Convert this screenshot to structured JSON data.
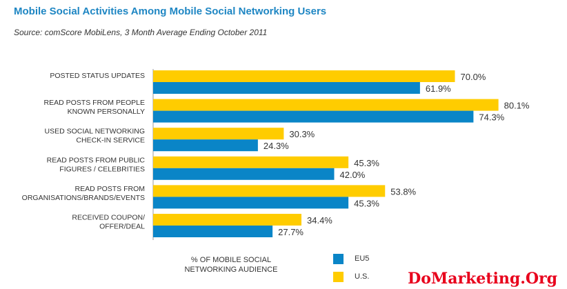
{
  "title": "Mobile Social Activities Among Mobile Social Networking Users",
  "subtitle": "Source: comScore MobiLens, 3 Month Average Ending October 2011",
  "watermark": "DoMarketing.Org",
  "chart_data": {
    "type": "bar",
    "orientation": "horizontal",
    "title": "Mobile Social Activities Among Mobile Social Networking Users",
    "subtitle": "Source: comScore MobiLens, 3 Month Average Ending October 2011",
    "xlabel": "% OF MOBILE SOCIAL NETWORKING AUDIENCE",
    "ylabel": "",
    "categories": [
      [
        "POSTED STATUS UPDATES"
      ],
      [
        "READ POSTS FROM PEOPLE",
        "KNOWN PERSONALLY"
      ],
      [
        "USED SOCIAL NETWORKING",
        "CHECK-IN SERVICE"
      ],
      [
        "READ POSTS FROM PUBLIC",
        "FIGURES / CELEBRITIES"
      ],
      [
        "READ POSTS FROM",
        "ORGANISATIONS/BRANDS/EVENTS"
      ],
      [
        "RECEIVED COUPON/",
        "OFFER/DEAL"
      ]
    ],
    "series": [
      {
        "name": "U.S.",
        "color": "#ffcc00",
        "values": [
          70.0,
          80.1,
          30.3,
          45.3,
          53.8,
          34.4
        ],
        "labels": [
          "70.0%",
          "80.1%",
          "30.3%",
          "45.3%",
          "53.8%",
          "34.4%"
        ]
      },
      {
        "name": "EU5",
        "color": "#0a85c7",
        "values": [
          61.9,
          74.3,
          24.3,
          42.0,
          45.3,
          27.7
        ],
        "labels": [
          "61.9%",
          "74.3%",
          "24.3%",
          "42.0%",
          "45.3%",
          "27.7%"
        ]
      }
    ],
    "xlim": [
      0,
      100
    ],
    "grid": false,
    "legend_position": "bottom"
  }
}
